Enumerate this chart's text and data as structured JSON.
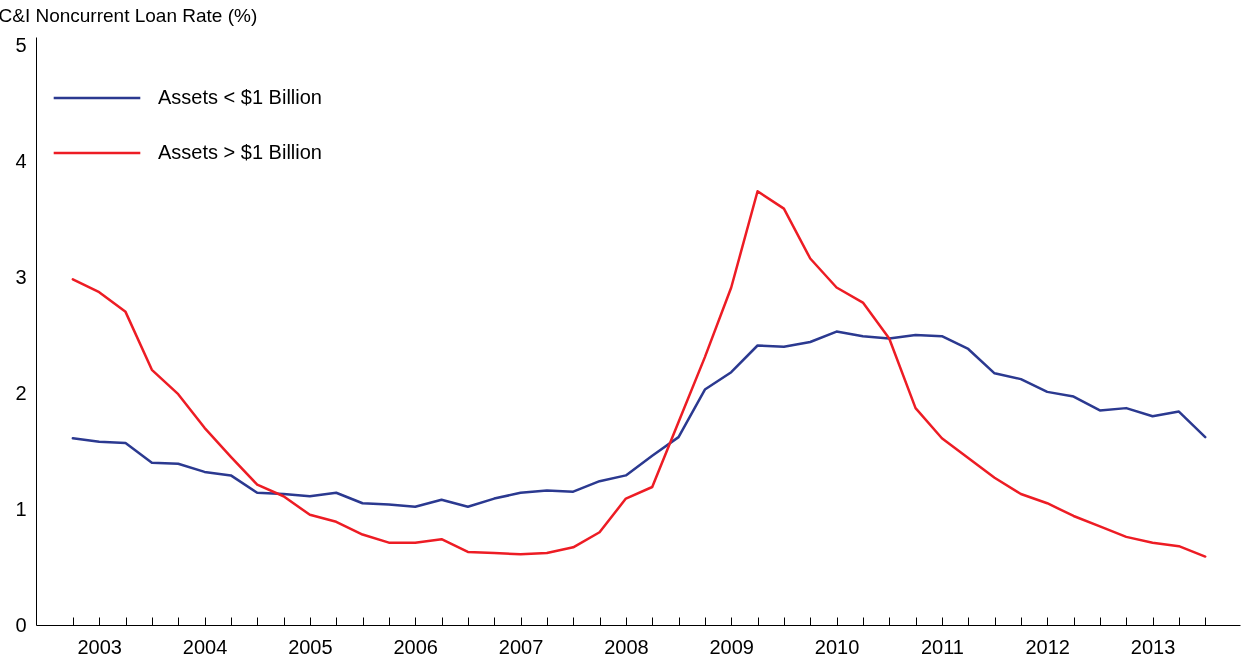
{
  "chart_data": {
    "type": "line",
    "ylabel": "C&I Noncurrent Loan Rate (%)",
    "x": [
      2003.25,
      2003.5,
      2003.75,
      2004,
      2004.25,
      2004.5,
      2004.75,
      2005,
      2005.25,
      2005.5,
      2005.75,
      2006,
      2006.25,
      2006.5,
      2006.75,
      2007,
      2007.25,
      2007.5,
      2007.75,
      2008,
      2008.25,
      2008.5,
      2008.75,
      2009,
      2009.25,
      2009.5,
      2009.75,
      2010,
      2010.25,
      2010.5,
      2010.75,
      2011,
      2011.25,
      2011.5,
      2011.75,
      2012,
      2012.25,
      2012.5,
      2012.75,
      2013,
      2013.25,
      2013.5,
      2013.75,
      2014
    ],
    "series": [
      {
        "name": "Assets < $1 Billion",
        "color": "#2b3990",
        "values": [
          1.61,
          1.58,
          1.57,
          1.4,
          1.39,
          1.32,
          1.29,
          1.14,
          1.13,
          1.11,
          1.14,
          1.05,
          1.04,
          1.02,
          1.08,
          1.02,
          1.09,
          1.14,
          1.16,
          1.15,
          1.24,
          1.29,
          1.46,
          1.62,
          2.03,
          2.18,
          2.41,
          2.4,
          2.44,
          2.53,
          2.49,
          2.47,
          2.5,
          2.49,
          2.38,
          2.17,
          2.12,
          2.01,
          1.97,
          1.85,
          1.87,
          1.8,
          1.84,
          1.62
        ]
      },
      {
        "name": "Assets > $1 Billion",
        "color": "#ed1c24",
        "values": [
          2.98,
          2.87,
          2.7,
          2.2,
          1.99,
          1.7,
          1.45,
          1.21,
          1.11,
          0.95,
          0.89,
          0.78,
          0.71,
          0.71,
          0.74,
          0.63,
          0.62,
          0.61,
          0.62,
          0.67,
          0.8,
          1.09,
          1.19,
          1.75,
          2.31,
          2.91,
          3.74,
          3.59,
          3.16,
          2.91,
          2.78,
          2.47,
          1.87,
          1.61,
          1.44,
          1.27,
          1.13,
          1.05,
          0.94,
          0.85,
          0.76,
          0.71,
          0.68,
          0.59
        ]
      }
    ],
    "xlim": [
      2002.9,
      2014.33
    ],
    "xticks": [
      {
        "value": 2003.25,
        "label": null
      },
      {
        "value": 2003.5,
        "label": "2003"
      },
      {
        "value": 2003.75,
        "label": null
      },
      {
        "value": 2004,
        "label": null
      },
      {
        "value": 2004.25,
        "label": null
      },
      {
        "value": 2004.5,
        "label": "2004"
      },
      {
        "value": 2004.75,
        "label": null
      },
      {
        "value": 2005,
        "label": null
      },
      {
        "value": 2005.25,
        "label": null
      },
      {
        "value": 2005.5,
        "label": "2005"
      },
      {
        "value": 2005.75,
        "label": null
      },
      {
        "value": 2006,
        "label": null
      },
      {
        "value": 2006.25,
        "label": null
      },
      {
        "value": 2006.5,
        "label": "2006"
      },
      {
        "value": 2006.75,
        "label": null
      },
      {
        "value": 2007,
        "label": null
      },
      {
        "value": 2007.25,
        "label": null
      },
      {
        "value": 2007.5,
        "label": "2007"
      },
      {
        "value": 2007.75,
        "label": null
      },
      {
        "value": 2008,
        "label": null
      },
      {
        "value": 2008.25,
        "label": null
      },
      {
        "value": 2008.5,
        "label": "2008"
      },
      {
        "value": 2008.75,
        "label": null
      },
      {
        "value": 2009,
        "label": null
      },
      {
        "value": 2009.25,
        "label": null
      },
      {
        "value": 2009.5,
        "label": "2009"
      },
      {
        "value": 2009.75,
        "label": null
      },
      {
        "value": 2010,
        "label": null
      },
      {
        "value": 2010.25,
        "label": null
      },
      {
        "value": 2010.5,
        "label": "2010"
      },
      {
        "value": 2010.75,
        "label": null
      },
      {
        "value": 2011,
        "label": null
      },
      {
        "value": 2011.25,
        "label": null
      },
      {
        "value": 2011.5,
        "label": "2011"
      },
      {
        "value": 2011.75,
        "label": null
      },
      {
        "value": 2012,
        "label": null
      },
      {
        "value": 2012.25,
        "label": null
      },
      {
        "value": 2012.5,
        "label": "2012"
      },
      {
        "value": 2012.75,
        "label": null
      },
      {
        "value": 2013,
        "label": null
      },
      {
        "value": 2013.25,
        "label": null
      },
      {
        "value": 2013.5,
        "label": "2013"
      },
      {
        "value": 2013.75,
        "label": null
      },
      {
        "value": 2014,
        "label": null
      }
    ],
    "ylim": [
      0,
      5.07
    ],
    "yticks": [
      0,
      1,
      2,
      3,
      4,
      5
    ],
    "grid": false,
    "legend": "top left",
    "marker": "none",
    "line_style": "solid"
  }
}
